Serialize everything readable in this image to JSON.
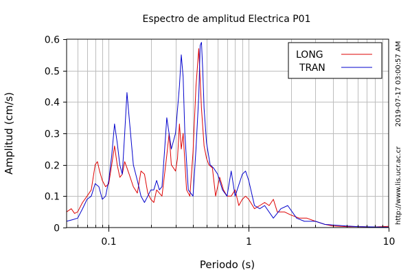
{
  "chart_data": {
    "type": "line",
    "title": "Espectro de amplitud Electrica P01",
    "xlabel": "Periodo (s)",
    "ylabel": "Amplitud (cm/s)",
    "xscale": "log",
    "xlim": [
      0.05,
      10
    ],
    "ylim": [
      0,
      0.6
    ],
    "xticks": [
      {
        "v": 0.1,
        "label": "0.1"
      },
      {
        "v": 1,
        "label": "1"
      },
      {
        "v": 10,
        "label": "10"
      }
    ],
    "yticks": [
      {
        "v": 0,
        "label": "0"
      },
      {
        "v": 0.1,
        "label": "0.1"
      },
      {
        "v": 0.2,
        "label": "0.2"
      },
      {
        "v": 0.3,
        "label": "0.3"
      },
      {
        "v": 0.4,
        "label": "0.4"
      },
      {
        "v": 0.5,
        "label": "0.5"
      },
      {
        "v": 0.6,
        "label": "0.6"
      }
    ],
    "grid": true,
    "legend_position": "top-right",
    "side_text_1": "2019-07-17 03:00:57 AM",
    "side_text_2": "http://www.lis.ucr.ac.cr",
    "series": [
      {
        "name": "LONG",
        "color": "#dd0000",
        "x": [
          0.05,
          0.054,
          0.057,
          0.06,
          0.065,
          0.07,
          0.075,
          0.08,
          0.083,
          0.086,
          0.09,
          0.095,
          0.1,
          0.105,
          0.11,
          0.115,
          0.12,
          0.125,
          0.13,
          0.135,
          0.14,
          0.15,
          0.16,
          0.17,
          0.18,
          0.19,
          0.2,
          0.21,
          0.22,
          0.24,
          0.26,
          0.27,
          0.28,
          0.3,
          0.31,
          0.32,
          0.33,
          0.34,
          0.36,
          0.38,
          0.4,
          0.42,
          0.44,
          0.46,
          0.48,
          0.5,
          0.52,
          0.55,
          0.58,
          0.62,
          0.66,
          0.7,
          0.75,
          0.8,
          0.85,
          0.9,
          0.95,
          1.0,
          1.1,
          1.2,
          1.3,
          1.4,
          1.5,
          1.6,
          1.8,
          2.0,
          2.3,
          2.6,
          3.0,
          3.5,
          4.0,
          5.0,
          6.0,
          8.0,
          10.0
        ],
        "y": [
          0.05,
          0.06,
          0.045,
          0.05,
          0.08,
          0.1,
          0.12,
          0.2,
          0.21,
          0.18,
          0.15,
          0.13,
          0.14,
          0.2,
          0.26,
          0.2,
          0.16,
          0.17,
          0.21,
          0.19,
          0.17,
          0.13,
          0.11,
          0.18,
          0.17,
          0.11,
          0.09,
          0.08,
          0.12,
          0.1,
          0.23,
          0.3,
          0.2,
          0.18,
          0.22,
          0.33,
          0.25,
          0.3,
          0.12,
          0.1,
          0.24,
          0.45,
          0.57,
          0.38,
          0.26,
          0.22,
          0.2,
          0.19,
          0.1,
          0.16,
          0.12,
          0.1,
          0.1,
          0.12,
          0.07,
          0.09,
          0.1,
          0.09,
          0.06,
          0.07,
          0.08,
          0.07,
          0.09,
          0.05,
          0.05,
          0.04,
          0.03,
          0.03,
          0.02,
          0.01,
          0.005,
          0.003,
          0.003,
          0.002,
          0.004
        ]
      },
      {
        "name": "TRAN",
        "color": "#0000cc",
        "x": [
          0.05,
          0.055,
          0.06,
          0.065,
          0.07,
          0.075,
          0.08,
          0.085,
          0.09,
          0.095,
          0.1,
          0.105,
          0.11,
          0.115,
          0.12,
          0.125,
          0.13,
          0.135,
          0.14,
          0.15,
          0.16,
          0.17,
          0.18,
          0.19,
          0.2,
          0.21,
          0.22,
          0.23,
          0.24,
          0.25,
          0.26,
          0.28,
          0.3,
          0.32,
          0.33,
          0.34,
          0.35,
          0.37,
          0.4,
          0.42,
          0.44,
          0.45,
          0.46,
          0.47,
          0.48,
          0.5,
          0.53,
          0.56,
          0.6,
          0.65,
          0.7,
          0.75,
          0.8,
          0.9,
          0.95,
          1.0,
          1.1,
          1.2,
          1.3,
          1.5,
          1.7,
          1.9,
          2.2,
          2.5,
          3.0,
          3.5,
          4.0,
          5.0,
          6.0,
          8.0,
          10.0
        ],
        "y": [
          0.02,
          0.025,
          0.03,
          0.06,
          0.09,
          0.1,
          0.14,
          0.13,
          0.09,
          0.1,
          0.15,
          0.23,
          0.33,
          0.27,
          0.2,
          0.17,
          0.3,
          0.43,
          0.35,
          0.2,
          0.15,
          0.1,
          0.08,
          0.1,
          0.12,
          0.12,
          0.15,
          0.12,
          0.13,
          0.24,
          0.35,
          0.25,
          0.3,
          0.45,
          0.55,
          0.48,
          0.3,
          0.12,
          0.1,
          0.25,
          0.42,
          0.58,
          0.59,
          0.5,
          0.38,
          0.27,
          0.2,
          0.19,
          0.17,
          0.12,
          0.1,
          0.18,
          0.1,
          0.17,
          0.18,
          0.15,
          0.07,
          0.06,
          0.07,
          0.03,
          0.06,
          0.07,
          0.03,
          0.02,
          0.02,
          0.01,
          0.008,
          0.005,
          0.003,
          0.002,
          0.001
        ]
      }
    ]
  }
}
